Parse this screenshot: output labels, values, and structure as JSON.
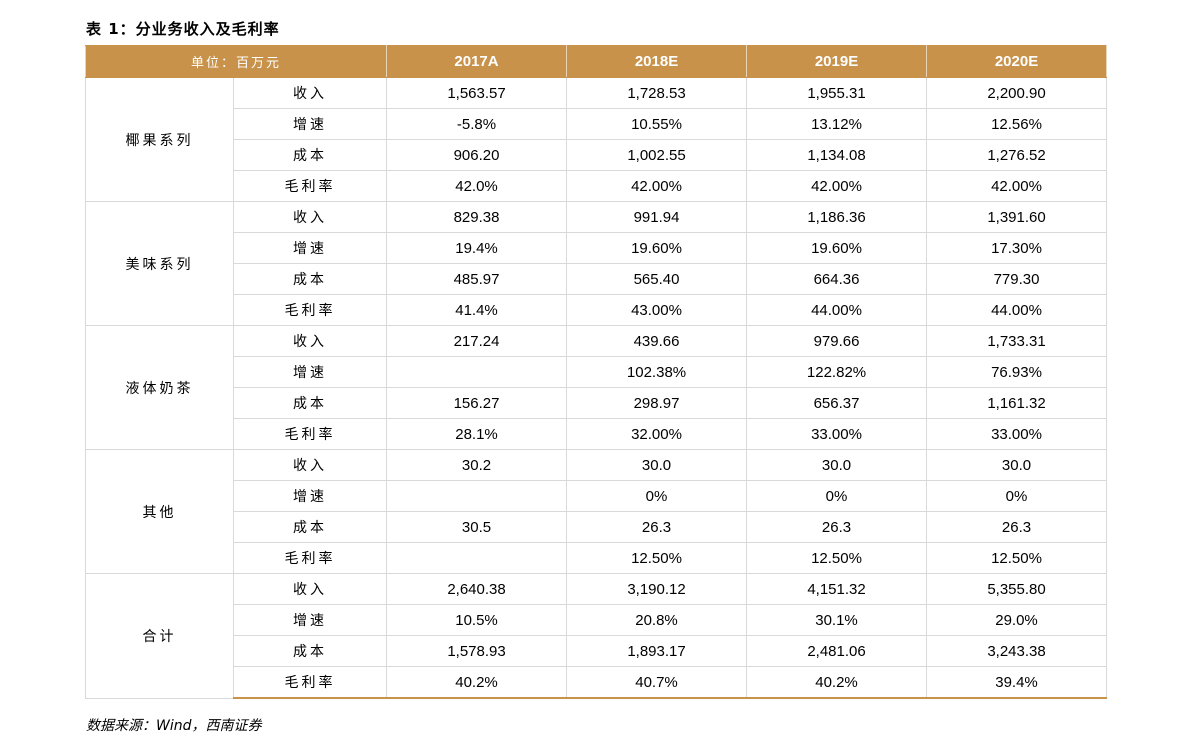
{
  "caption": "表 1：分业务收入及毛利率",
  "table": {
    "unit_label": "单位：百万元",
    "years": [
      "2017A",
      "2018E",
      "2019E",
      "2020E"
    ],
    "segments": [
      {
        "name": "椰果系列",
        "rows": [
          {
            "metric": "收入",
            "values": [
              "1,563.57",
              "1,728.53",
              "1,955.31",
              "2,200.90"
            ]
          },
          {
            "metric": "增速",
            "values": [
              "-5.8%",
              "10.55%",
              "13.12%",
              "12.56%"
            ]
          },
          {
            "metric": "成本",
            "values": [
              "906.20",
              "1,002.55",
              "1,134.08",
              "1,276.52"
            ]
          },
          {
            "metric": "毛利率",
            "values": [
              "42.0%",
              "42.00%",
              "42.00%",
              "42.00%"
            ]
          }
        ]
      },
      {
        "name": "美味系列",
        "rows": [
          {
            "metric": "收入",
            "values": [
              "829.38",
              "991.94",
              "1,186.36",
              "1,391.60"
            ]
          },
          {
            "metric": "增速",
            "values": [
              "19.4%",
              "19.60%",
              "19.60%",
              "17.30%"
            ]
          },
          {
            "metric": "成本",
            "values": [
              "485.97",
              "565.40",
              "664.36",
              "779.30"
            ]
          },
          {
            "metric": "毛利率",
            "values": [
              "41.4%",
              "43.00%",
              "44.00%",
              "44.00%"
            ]
          }
        ]
      },
      {
        "name": "液体奶茶",
        "rows": [
          {
            "metric": "收入",
            "values": [
              "217.24",
              "439.66",
              "979.66",
              "1,733.31"
            ]
          },
          {
            "metric": "增速",
            "values": [
              "",
              "102.38%",
              "122.82%",
              "76.93%"
            ]
          },
          {
            "metric": "成本",
            "values": [
              "156.27",
              "298.97",
              "656.37",
              "1,161.32"
            ]
          },
          {
            "metric": "毛利率",
            "values": [
              "28.1%",
              "32.00%",
              "33.00%",
              "33.00%"
            ]
          }
        ]
      },
      {
        "name": "其他",
        "rows": [
          {
            "metric": "收入",
            "values": [
              "30.2",
              "30.0",
              "30.0",
              "30.0"
            ]
          },
          {
            "metric": "增速",
            "values": [
              "",
              "0%",
              "0%",
              "0%"
            ]
          },
          {
            "metric": "成本",
            "values": [
              "30.5",
              "26.3",
              "26.3",
              "26.3"
            ]
          },
          {
            "metric": "毛利率",
            "values": [
              "",
              "12.50%",
              "12.50%",
              "12.50%"
            ]
          }
        ]
      },
      {
        "name": "合计",
        "rows": [
          {
            "metric": "收入",
            "values": [
              "2,640.38",
              "3,190.12",
              "4,151.32",
              "5,355.80"
            ]
          },
          {
            "metric": "增速",
            "values": [
              "10.5%",
              "20.8%",
              "30.1%",
              "29.0%"
            ]
          },
          {
            "metric": "成本",
            "values": [
              "1,578.93",
              "1,893.17",
              "2,481.06",
              "3,243.38"
            ]
          },
          {
            "metric": "毛利率",
            "values": [
              "40.2%",
              "40.7%",
              "40.2%",
              "39.4%"
            ]
          }
        ]
      }
    ]
  },
  "source": "数据来源：Wind，西南证券",
  "colors": {
    "header_bg": "#c8924a",
    "header_text": "#ffffff",
    "grid": "#d9d9d9"
  }
}
